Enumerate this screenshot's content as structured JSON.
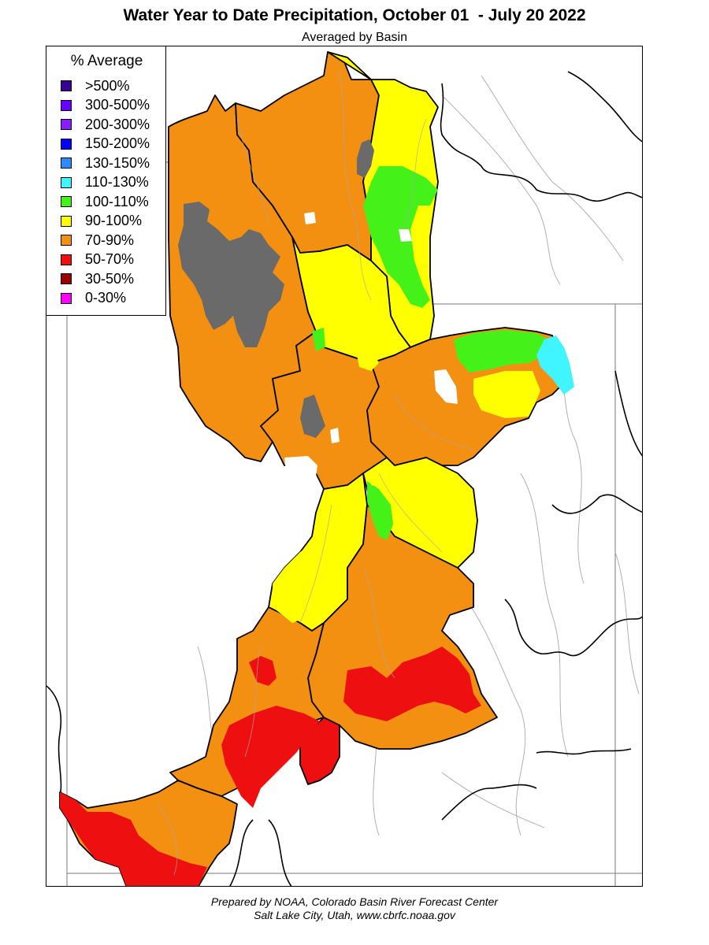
{
  "title": "Water Year to Date Precipitation, October 01  - July 20 2022",
  "subtitle": "Averaged by Basin",
  "legend": {
    "title": "% Average",
    "items": [
      {
        "label": ">500%",
        "color": "#3a0096"
      },
      {
        "label": "300-500%",
        "color": "#6a00ff"
      },
      {
        "label": "200-300%",
        "color": "#8a1cff"
      },
      {
        "label": "150-200%",
        "color": "#0000ff"
      },
      {
        "label": "130-150%",
        "color": "#2a8cff"
      },
      {
        "label": "110-130%",
        "color": "#40f5ff"
      },
      {
        "label": "100-110%",
        "color": "#44f21a"
      },
      {
        "label": "90-100%",
        "color": "#ffff00"
      },
      {
        "label": "70-90%",
        "color": "#f39012"
      },
      {
        "label": "50-70%",
        "color": "#ee1010"
      },
      {
        "label": "30-50%",
        "color": "#990000"
      },
      {
        "label": "0-30%",
        "color": "#ff00ff"
      }
    ]
  },
  "colors": {
    "gray_lake": "#6a6a6a",
    "border": "#000000",
    "state_line": "#7a7a7a",
    "river": "#a8a8a8"
  },
  "footer": {
    "line1": "Prepared by NOAA, Colorado Basin River Forecast Center",
    "line2": "Salt Lake City, Utah, www.cbrfc.noaa.gov"
  }
}
